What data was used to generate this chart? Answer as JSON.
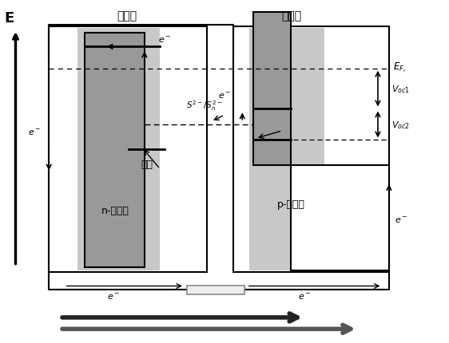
{
  "bg_color": "#ffffff",
  "left_panel_label": "光阳极",
  "right_panel_label": "光阴极",
  "left_inner_label": "n-半导体",
  "right_inner_label": "p-量子点",
  "dye_label": "染料",
  "E_axis_label": "E",
  "redox_label": "S²⁻/Sₙ²⁻",
  "gray_light": "#c8c8c8",
  "gray_dark": "#999999",
  "gray_electrode": "#b0b0b0"
}
